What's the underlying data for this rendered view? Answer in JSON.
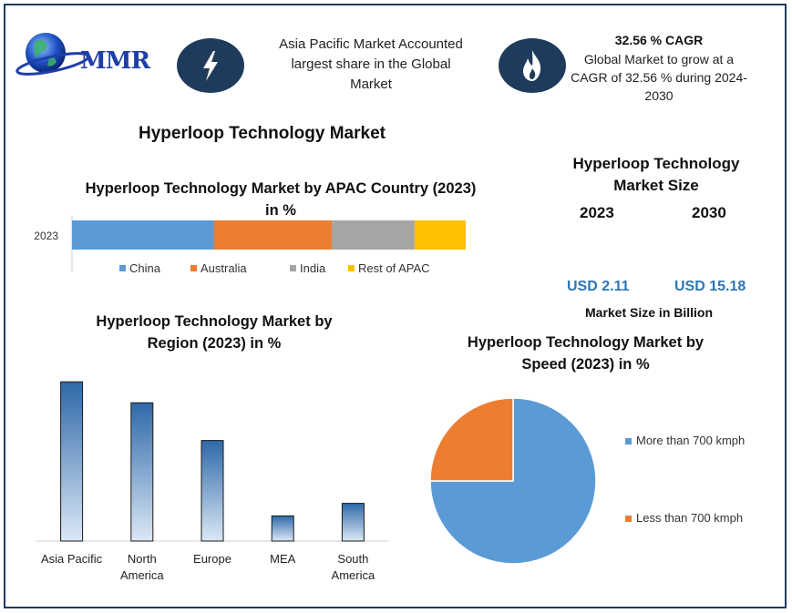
{
  "header": {
    "logo_text": "MMR",
    "highlight_text_lines": [
      "Asia Pacific Market Accounted",
      "largest share in the Global",
      "Market"
    ],
    "cagr_title": "32.56 % CAGR",
    "cagr_text_lines": [
      "Global Market to grow at a",
      "CAGR of 32.56 % during 2024-",
      "2030"
    ],
    "icons": [
      "lightning-icon",
      "flame-icon",
      "globe-icon"
    ]
  },
  "main_title": "Hyperloop Technology Market",
  "market_size": {
    "title_lines": [
      "Hyperloop Technology",
      "Market Size"
    ],
    "year_start": "2023",
    "year_end": "2030",
    "value_start": "USD 2.11",
    "value_end": "USD 15.18",
    "subtitle": "Market Size in Billion"
  },
  "colors": {
    "border": "#1f3b5c",
    "china": "#5b9bd5",
    "australia": "#ed7d31",
    "india": "#a5a5a5",
    "rest_of_apac": "#ffc000",
    "usd": "#2e75b6",
    "pie_more": "#5b9bd5",
    "pie_less": "#ed7d31",
    "bar_dark": "#2e68a8",
    "bar_light": "#dbe8f6"
  },
  "chart_data": [
    {
      "type": "bar",
      "orientation": "horizontal-stacked",
      "title_lines": [
        "Hyperloop Technology Market by APAC Country (2023)",
        "in %"
      ],
      "categories": [
        "2023"
      ],
      "series": [
        {
          "name": "China",
          "values": [
            36
          ]
        },
        {
          "name": "Australia",
          "values": [
            30
          ]
        },
        {
          "name": "India",
          "values": [
            21
          ]
        },
        {
          "name": "Rest of APAC",
          "values": [
            13
          ]
        }
      ],
      "legend": "bottom"
    },
    {
      "type": "bar",
      "title_lines": [
        "Hyperloop Technology Market by",
        "Region (2023)  in %"
      ],
      "categories": [
        "Asia Pacific",
        "North America",
        "Europe",
        "MEA",
        "South America"
      ],
      "category_labels": [
        [
          "Asia Pacific"
        ],
        [
          "North",
          "America"
        ],
        [
          "Europe"
        ],
        [
          "MEA"
        ],
        [
          "South",
          "America"
        ]
      ],
      "values": [
        38,
        33,
        24,
        6,
        9
      ],
      "ylim": [
        0,
        40
      ],
      "grid": false
    },
    {
      "type": "pie",
      "title_lines": [
        "Hyperloop Technology Market by",
        "Speed (2023) in %"
      ],
      "series": [
        {
          "name": "More than 700 kmph",
          "value": 75
        },
        {
          "name": "Less than 700 kmph",
          "value": 25
        }
      ],
      "legend": "right"
    }
  ]
}
